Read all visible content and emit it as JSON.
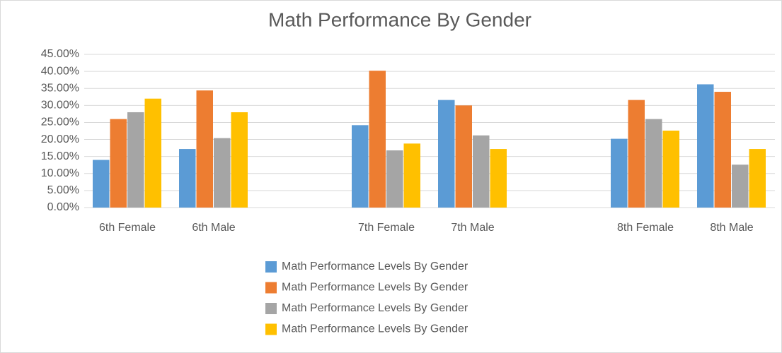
{
  "chart_data": {
    "type": "bar",
    "title": "Math Performance By Gender",
    "categories": [
      "6th Female",
      "6th Male",
      null,
      "7th Female",
      "7th Male",
      null,
      "8th Female",
      "8th Male"
    ],
    "series": [
      {
        "name": "Math Performance Levels By Gender",
        "color": "#5b9bd5",
        "values": [
          14,
          17.2,
          null,
          24.2,
          31.6,
          null,
          20.2,
          36.2
        ]
      },
      {
        "name": "Math Performance Levels By Gender",
        "color": "#ed7d31",
        "values": [
          26,
          34.4,
          null,
          40.2,
          30,
          null,
          31.6,
          34
        ]
      },
      {
        "name": "Math Performance Levels By Gender",
        "color": "#a5a5a5",
        "values": [
          28,
          20.4,
          null,
          16.8,
          21.2,
          null,
          26,
          12.6
        ]
      },
      {
        "name": "Math Performance Levels By Gender",
        "color": "#ffc000",
        "values": [
          32,
          28,
          null,
          18.8,
          17.2,
          null,
          22.6,
          17.2
        ]
      }
    ],
    "ylim": [
      0,
      45
    ],
    "yticks": [
      {
        "value": 0,
        "label": "0.00%"
      },
      {
        "value": 5,
        "label": "5.00%"
      },
      {
        "value": 10,
        "label": "10.00%"
      },
      {
        "value": 15,
        "label": "15.00%"
      },
      {
        "value": 20,
        "label": "20.00%"
      },
      {
        "value": 25,
        "label": "25.00%"
      },
      {
        "value": 30,
        "label": "30.00%"
      },
      {
        "value": 35,
        "label": "35.00%"
      },
      {
        "value": 40,
        "label": "40.00%"
      },
      {
        "value": 45,
        "label": "45.00%"
      }
    ],
    "grid": true,
    "legend": "bottom"
  }
}
